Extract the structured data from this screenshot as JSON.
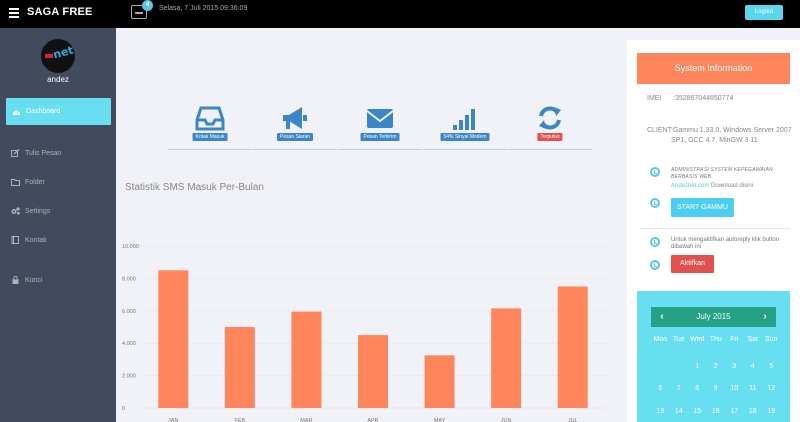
{
  "topbar": {
    "brand": "SAGA FREE",
    "message_badge": "4",
    "datetime": "Selasa, 7 Juli 2015 09:36:09",
    "logout_label": "Logout"
  },
  "sidebar": {
    "username": "andez",
    "items": [
      {
        "label": "Dashboard",
        "icon": "dashboard-icon",
        "active": true
      },
      {
        "label": "Tulis Pesan",
        "icon": "edit-icon"
      },
      {
        "label": "Folder",
        "icon": "folder-icon"
      },
      {
        "label": "Settings",
        "icon": "cogs-icon"
      },
      {
        "label": "Kontak",
        "icon": "book-icon"
      },
      {
        "label": "Kunci",
        "icon": "lock-icon"
      }
    ]
  },
  "tiles": [
    {
      "label": "Kotak Masuk",
      "icon": "inbox-icon"
    },
    {
      "label": "Pesan Siaran",
      "icon": "bullhorn-icon"
    },
    {
      "label": "Pesan Terkirim",
      "icon": "envelope-icon"
    },
    {
      "label": "54% Sinyal Modem",
      "icon": "signal-icon"
    },
    {
      "label": "Terputus",
      "icon": "refresh-icon",
      "status": "error"
    }
  ],
  "chart_title": "Statistik SMS Masuk Per-Bulan",
  "chart_data": {
    "type": "bar",
    "title": "Statistik SMS Masuk Per-Bulan",
    "categories": [
      "JAN",
      "FEB",
      "MAR",
      "APR",
      "MAY",
      "JUN",
      "JUL"
    ],
    "values": [
      8500,
      5000,
      5950,
      4500,
      3250,
      6150,
      7500
    ],
    "ylim": [
      0,
      10000
    ],
    "yticks": [
      "0",
      "2.000",
      "4.000",
      "6.000",
      "8.000",
      "10.000"
    ],
    "grid": true,
    "bar_color": "#ff865c"
  },
  "system_info": {
    "title": "System Information",
    "imei_key": "IMEI",
    "imei_value": ":352867044650774",
    "client_key": "CLIENT",
    "client_value": ":Gammu 1.33.0, Windows Server 2007 SP1, GCC 4.7, MinGW 3.11",
    "admin_text": "ADMINISTRASI SYSTEM KEPEGAWAIAN BERBASIS WEB",
    "download_link": "Andezhet.com",
    "download_text": " Download disini",
    "start_label": "START GAMMU",
    "autoreply_text": "Untuk mengaktifkan autoreply klik button dibawah ini",
    "activate_label": "Aktifkan"
  },
  "calendar": {
    "month": "July 2015",
    "prev": "‹",
    "next": "›",
    "days": [
      "Mon",
      "Tue",
      "Wed",
      "Thu",
      "Fri",
      "Sat",
      "Sun"
    ],
    "rows": [
      [
        "",
        "",
        "1",
        "2",
        "3",
        "4",
        "5"
      ],
      [
        "6",
        "7",
        "8",
        "9",
        "10",
        "11",
        "12"
      ],
      [
        "13",
        "14",
        "15",
        "16",
        "17",
        "18",
        "19"
      ]
    ]
  },
  "colors": {
    "topbar": "#000000",
    "sidebar": "#424a5d",
    "accent": "#68dff0",
    "orange": "#ff865c",
    "calendar_head": "#24a187",
    "danger": "#e35050"
  }
}
